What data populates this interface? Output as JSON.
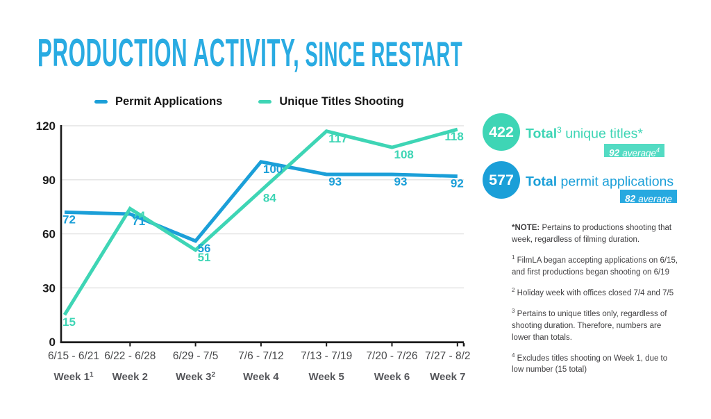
{
  "title": {
    "part1": "PRODUCTION ACTIVITY,",
    "part2": " SINCE RESTART",
    "color": "#29abe2"
  },
  "legend": {
    "items": [
      {
        "label": "Permit Applications",
        "color": "#1b9fd8"
      },
      {
        "label": "Unique Titles Shooting",
        "color": "#3ed5b5"
      }
    ]
  },
  "chart_data": {
    "type": "line",
    "title": "PRODUCTION ACTIVITY, SINCE RESTART",
    "categories": [
      {
        "dates": "6/15 - 6/21",
        "week": "Week 1",
        "sup": "1"
      },
      {
        "dates": "6/22 - 6/28",
        "week": "Week 2",
        "sup": ""
      },
      {
        "dates": "6/29 - 7/5",
        "week": "Week 3",
        "sup": "2"
      },
      {
        "dates": "7/6 - 7/12",
        "week": "Week 4",
        "sup": ""
      },
      {
        "dates": "7/13 - 7/19",
        "week": "Week 5",
        "sup": ""
      },
      {
        "dates": "7/20 - 7/26",
        "week": "Week 6",
        "sup": ""
      },
      {
        "dates": "7/27 - 8/2",
        "week": "Week 7",
        "sup": ""
      }
    ],
    "series": [
      {
        "name": "Permit Applications",
        "color": "#1b9fd8",
        "values": [
          72,
          71,
          56,
          100,
          93,
          93,
          92
        ]
      },
      {
        "name": "Unique Titles Shooting",
        "color": "#3ed5b5",
        "values": [
          15,
          74,
          51,
          84,
          117,
          108,
          118
        ]
      }
    ],
    "xlabel": "",
    "ylabel": "",
    "ylim": [
      0,
      120
    ],
    "yticks": [
      0,
      30,
      60,
      90,
      120
    ],
    "grid": "horizontal",
    "legend_position": "top"
  },
  "summary": [
    {
      "value": "422",
      "circle_color": "#3ed5b5",
      "text_color": "#3ed5b5",
      "badge_color": "#53dbc3",
      "title_bold": "Total",
      "title_sup": "3",
      "title_rest": " unique titles*",
      "badge_bold": "92",
      "badge_rest": "average",
      "badge_sup": "4"
    },
    {
      "value": "577",
      "circle_color": "#1b9fd8",
      "text_color": "#1b9fd8",
      "badge_color": "#27a9e0",
      "title_bold": "Total",
      "title_sup": "",
      "title_rest": " permit applications",
      "badge_bold": "82",
      "badge_rest": "average",
      "badge_sup": ""
    }
  ],
  "notes": [
    {
      "bold_marker": "*NOTE:",
      "sup": "",
      "text": "Pertains to productions shooting that week, regardless of filming duration."
    },
    {
      "bold_marker": "",
      "sup": "1",
      "text": "FilmLA began accepting applications on 6/15, and first productions began shooting on 6/19"
    },
    {
      "bold_marker": "",
      "sup": "2",
      "text": "Holiday week with offices closed 7/4 and 7/5"
    },
    {
      "bold_marker": "",
      "sup": "3",
      "text": "Pertains to unique titles only, regardless of shooting duration. Therefore, numbers are lower than totals."
    },
    {
      "bold_marker": "",
      "sup": "4",
      "text": "Excludes titles shooting on Week 1, due to low number (15 total)"
    }
  ]
}
